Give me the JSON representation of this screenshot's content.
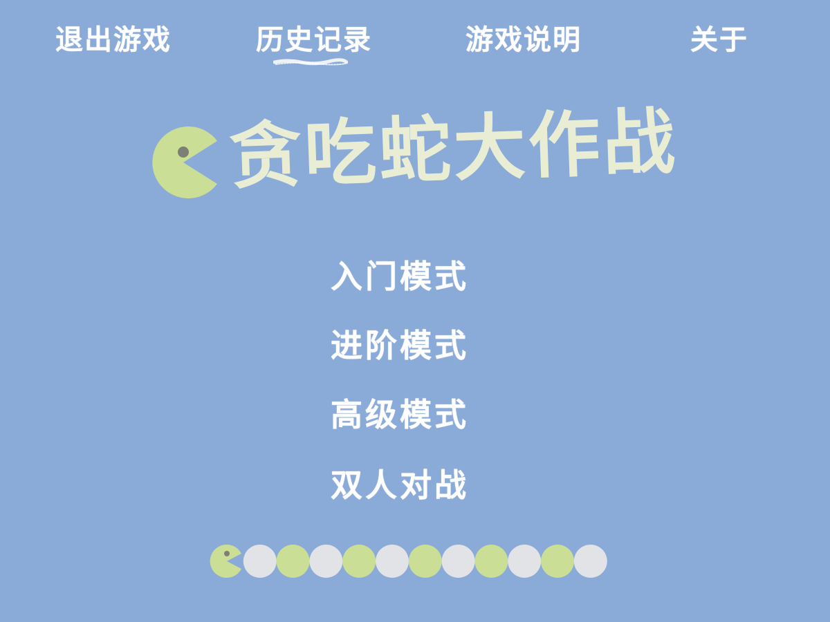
{
  "top_menu": {
    "exit_label": "退出游戏",
    "history_label": "历史记录",
    "help_label": "游戏说明",
    "about_label": "关于"
  },
  "title": {
    "text": "贪吃蛇大作战",
    "logo_icon": "pacman-icon"
  },
  "modes": [
    {
      "label": "入门模式"
    },
    {
      "label": "进阶模式"
    },
    {
      "label": "高级模式"
    },
    {
      "label": "双人对战"
    }
  ],
  "snake_decoration": {
    "head_icon": "pacman-icon",
    "segment_count": 11,
    "segment_pattern": [
      "gray",
      "green"
    ]
  },
  "colors": {
    "background": "#8aaad8",
    "title_text": "#e9edd4",
    "menu_text": "#ffffff",
    "pacman_green": "#cade96",
    "segment_gray": "#e2e3e6",
    "eye": "#7d7f74"
  }
}
